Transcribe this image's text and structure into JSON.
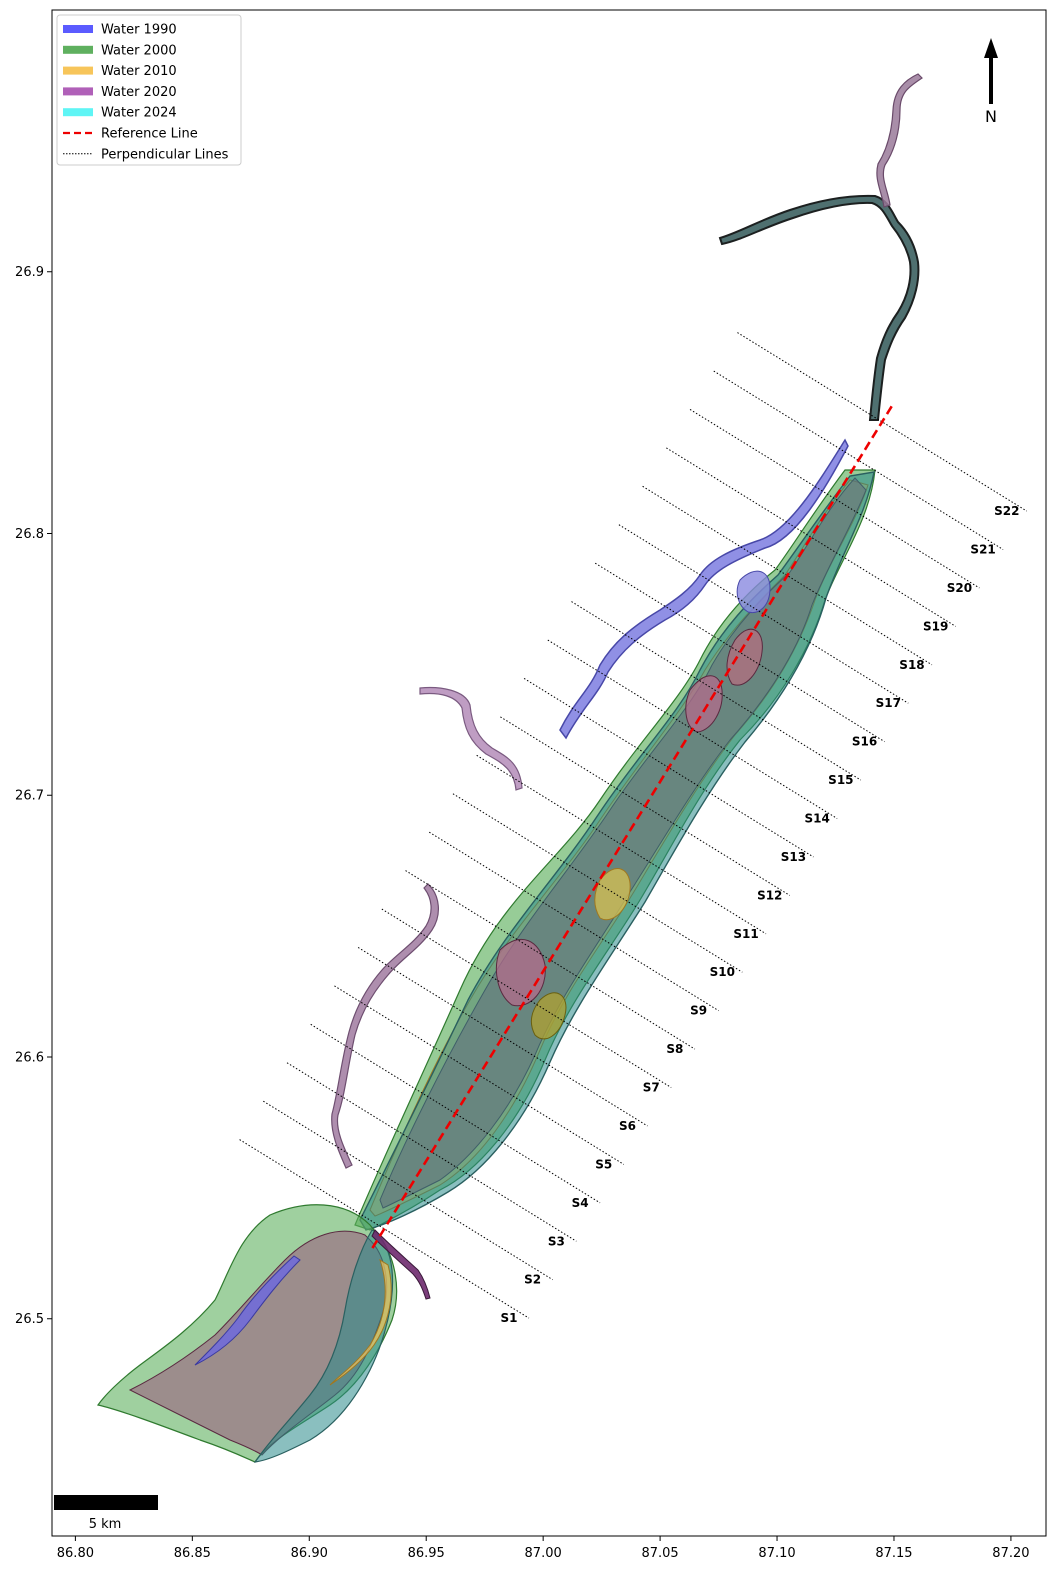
{
  "map": {
    "xaxis": {
      "range": [
        86.79,
        87.215
      ],
      "ticks": [
        "86.80",
        "86.85",
        "86.90",
        "86.95",
        "87.00",
        "87.05",
        "87.10",
        "87.15",
        "87.20"
      ],
      "tick_values": [
        86.8,
        86.85,
        86.9,
        86.95,
        87.0,
        87.05,
        87.1,
        87.15,
        87.2
      ]
    },
    "yaxis": {
      "range": [
        26.417,
        27.0
      ],
      "ticks": [
        "26.5",
        "26.6",
        "26.7",
        "26.8",
        "26.9"
      ],
      "tick_values": [
        26.5,
        26.6,
        26.7,
        26.8,
        26.9
      ]
    },
    "legend": {
      "placement": "top-left",
      "items": [
        {
          "label": "Water 1990",
          "color": "#5b5bff",
          "style": "patch"
        },
        {
          "label": "Water 2000",
          "color": "#5fb05f",
          "style": "patch"
        },
        {
          "label": "Water 2010",
          "color": "#f7c55a",
          "style": "patch"
        },
        {
          "label": "Water 2020",
          "color": "#b060b8",
          "style": "patch"
        },
        {
          "label": "Water 2024",
          "color": "#5ff5f5",
          "style": "patch"
        },
        {
          "label": "Reference Line",
          "color": "#ee0000",
          "style": "dashed"
        },
        {
          "label": "Perpendicular Lines",
          "color": "#000000",
          "style": "dotted"
        }
      ]
    },
    "reference_line": {
      "start": [
        86.927,
        26.527
      ],
      "end": [
        87.15,
        26.85
      ]
    },
    "sections": [
      "S1",
      "S2",
      "S3",
      "S4",
      "S5",
      "S6",
      "S7",
      "S8",
      "S9",
      "S10",
      "S11",
      "S12",
      "S13",
      "S14",
      "S15",
      "S16",
      "S17",
      "S18",
      "S19",
      "S20",
      "S21",
      "S22"
    ],
    "north_label": "N",
    "scale_bar_label": "5 km"
  }
}
